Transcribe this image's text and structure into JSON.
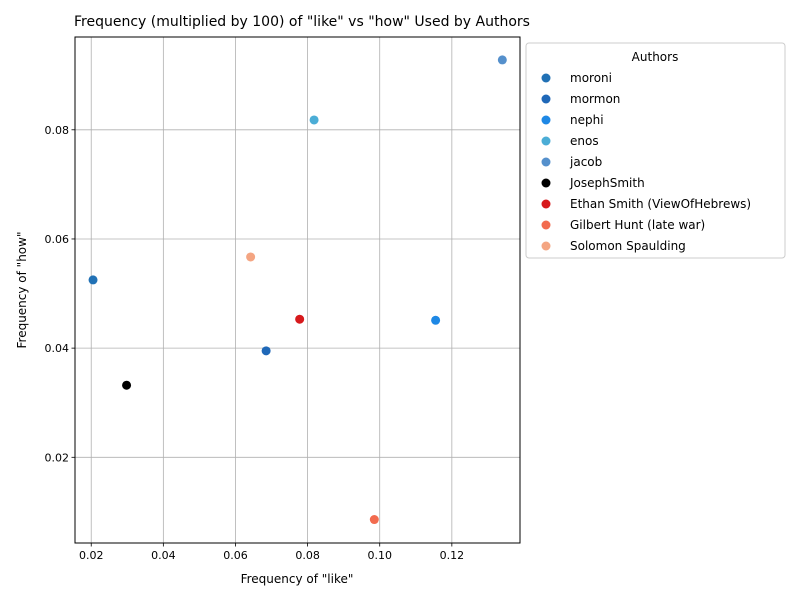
{
  "chart_data": {
    "type": "scatter",
    "title": "Frequency (multiplied by 100) of \"like\" vs \"how\" Used by Authors",
    "xlabel": "Frequency of \"like\"",
    "ylabel": "Frequency of \"how\"",
    "xlim": [
      0.0155,
      0.1389
    ],
    "ylim": [
      0.0043,
      0.097
    ],
    "xticks": [
      0.02,
      0.04,
      0.06,
      0.08,
      0.1,
      0.12
    ],
    "yticks": [
      0.02,
      0.04,
      0.06,
      0.08
    ],
    "xtick_labels": [
      "0.02",
      "0.04",
      "0.06",
      "0.08",
      "0.10",
      "0.12"
    ],
    "ytick_labels": [
      "0.02",
      "0.04",
      "0.06",
      "0.08"
    ],
    "grid": true,
    "legend_title": "Authors",
    "legend_position": "outside-upper-right",
    "series": [
      {
        "name": "moroni",
        "color": "#2171b5",
        "points": [
          {
            "x": 0.0205,
            "y": 0.0525
          }
        ]
      },
      {
        "name": "mormon",
        "color": "#1f68b8",
        "points": [
          {
            "x": 0.0685,
            "y": 0.0395
          }
        ]
      },
      {
        "name": "nephi",
        "color": "#1e88e5",
        "points": [
          {
            "x": 0.1155,
            "y": 0.0451
          }
        ]
      },
      {
        "name": "enos",
        "color": "#4badd6",
        "points": [
          {
            "x": 0.0818,
            "y": 0.0818
          }
        ]
      },
      {
        "name": "jacob",
        "color": "#5590cc",
        "points": [
          {
            "x": 0.134,
            "y": 0.0928
          }
        ]
      },
      {
        "name": "JosephSmith",
        "color": "#000000",
        "points": [
          {
            "x": 0.0298,
            "y": 0.0332
          }
        ]
      },
      {
        "name": "Ethan Smith (ViewOfHebrews)",
        "color": "#d7191c",
        "points": [
          {
            "x": 0.0778,
            "y": 0.0453
          }
        ]
      },
      {
        "name": "Gilbert Hunt (late war)",
        "color": "#f26b4f",
        "points": [
          {
            "x": 0.0985,
            "y": 0.0086
          }
        ]
      },
      {
        "name": "Solomon Spaulding",
        "color": "#f4a582",
        "points": [
          {
            "x": 0.0642,
            "y": 0.0567
          }
        ]
      }
    ]
  }
}
